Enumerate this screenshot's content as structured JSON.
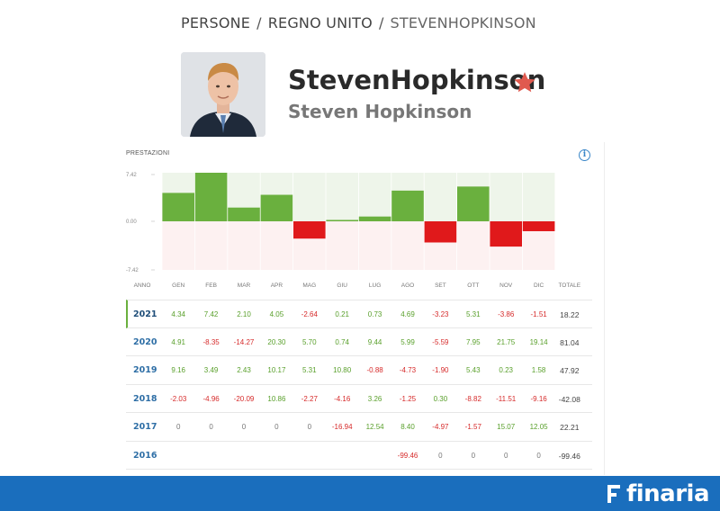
{
  "breadcrumb": {
    "items": [
      "PERSONE",
      "REGNO UNITO",
      "STEVENHOPKINSON"
    ],
    "separator": "/"
  },
  "profile": {
    "username": "StevenHopkinson",
    "full_name": "Steven Hopkinson",
    "star_color": "#e05a4f"
  },
  "panel": {
    "title": "PRESTAZIONI",
    "info_symbol": "i"
  },
  "chart_data": {
    "type": "bar",
    "year": "2021",
    "categories": [
      "GEN",
      "FEB",
      "MAR",
      "APR",
      "MAG",
      "GIU",
      "LUG",
      "AGO",
      "SET",
      "OTT",
      "NOV",
      "DIC"
    ],
    "values": [
      4.34,
      7.42,
      2.1,
      4.05,
      -2.64,
      0.21,
      0.73,
      4.69,
      -3.23,
      5.31,
      -3.86,
      -1.51
    ],
    "ytick_labels": [
      "7.42",
      "0.00",
      "-7.42"
    ],
    "ylim": [
      -7.42,
      7.42
    ],
    "colors": {
      "positive": "#6ab03e",
      "negative": "#e0191b",
      "pos_bg": "#eef5ea",
      "neg_bg": "#fdf1f1"
    }
  },
  "table": {
    "headers": {
      "year": "ANNO",
      "months": [
        "GEN",
        "FEB",
        "MAR",
        "APR",
        "MAG",
        "GIU",
        "LUG",
        "AGO",
        "SET",
        "OTT",
        "NOV",
        "DIC"
      ],
      "total": "TOTALE"
    },
    "rows": [
      {
        "year": "2021",
        "active": true,
        "values": [
          "4.34",
          "7.42",
          "2.10",
          "4.05",
          "-2.64",
          "0.21",
          "0.73",
          "4.69",
          "-3.23",
          "5.31",
          "-3.86",
          "-1.51"
        ],
        "total": "18.22"
      },
      {
        "year": "2020",
        "active": false,
        "values": [
          "4.91",
          "-8.35",
          "-14.27",
          "20.30",
          "5.70",
          "0.74",
          "9.44",
          "5.99",
          "-5.59",
          "7.95",
          "21.75",
          "19.14"
        ],
        "total": "81.04"
      },
      {
        "year": "2019",
        "active": false,
        "values": [
          "9.16",
          "3.49",
          "2.43",
          "10.17",
          "5.31",
          "10.80",
          "-0.88",
          "-4.73",
          "-1.90",
          "5.43",
          "0.23",
          "1.58"
        ],
        "total": "47.92"
      },
      {
        "year": "2018",
        "active": false,
        "values": [
          "-2.03",
          "-4.96",
          "-20.09",
          "10.86",
          "-2.27",
          "-4.16",
          "3.26",
          "-1.25",
          "0.30",
          "-8.82",
          "-11.51",
          "-9.16"
        ],
        "total": "-42.08"
      },
      {
        "year": "2017",
        "active": false,
        "values": [
          "0",
          "0",
          "0",
          "0",
          "0",
          "-16.94",
          "12.54",
          "8.40",
          "-4.97",
          "-1.57",
          "15.07",
          "12.05"
        ],
        "total": "22.21"
      },
      {
        "year": "2016",
        "active": false,
        "values": [
          "",
          "",
          "",
          "",
          "",
          "",
          "",
          "-99.46",
          "0",
          "0",
          "0",
          "0"
        ],
        "total": "-99.46"
      }
    ]
  },
  "footer": {
    "brand": "finaria",
    "bg_color": "#1a6ebd"
  }
}
